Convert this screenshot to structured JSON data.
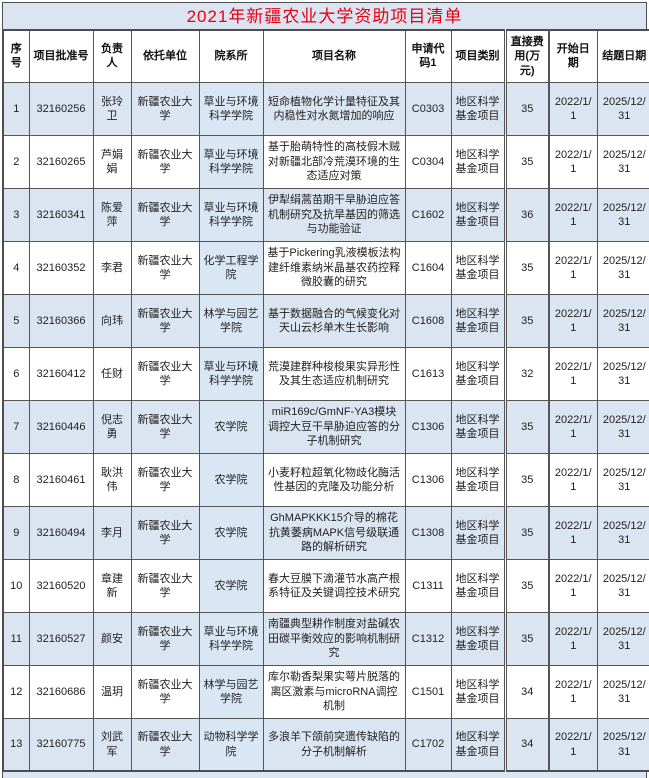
{
  "title": "2021年新疆农业大学资助项目清单",
  "colors": {
    "title_text": "#e60012",
    "title_bar_bg": "#dbe5f1",
    "row_alt_blue": "#dbe5f1",
    "department_col_blue": "#d9e7f5",
    "grid_border": "#555555"
  },
  "table": {
    "headers": [
      "序号",
      "项目批准号",
      "负责人",
      "依托单位",
      "院系所",
      "项目名称",
      "申请代码1",
      "项目类别",
      "直接费用(万元)",
      "开始日期",
      "结题日期"
    ],
    "rows": [
      [
        "1",
        "32160256",
        "张玲卫",
        "新疆农业大学",
        "草业与环境科学学院",
        "短命植物化学计量特征及其内稳性对水氮增加的响应",
        "C0303",
        "地区科学基金项目",
        "35",
        "2022/1/1",
        "2025/12/31"
      ],
      [
        "2",
        "32160265",
        "芦娟娟",
        "新疆农业大学",
        "草业与环境科学学院",
        "基于胎萌特性的高枝假木贼对新疆北部冷荒漠环境的生态适应对策",
        "C0304",
        "地区科学基金项目",
        "35",
        "2022/1/1",
        "2025/12/31"
      ],
      [
        "3",
        "32160341",
        "陈爱萍",
        "新疆农业大学",
        "草业与环境科学学院",
        "伊犁绢蒿苗期干旱胁迫应答机制研究及抗旱基因的筛选与功能验证",
        "C1602",
        "地区科学基金项目",
        "36",
        "2022/1/1",
        "2025/12/31"
      ],
      [
        "4",
        "32160352",
        "李君",
        "新疆农业大学",
        "化学工程学院",
        "基于Pickering乳液模板法构建纤维素纳米晶基农药控释微胶囊的研究",
        "C1604",
        "地区科学基金项目",
        "35",
        "2022/1/1",
        "2025/12/31"
      ],
      [
        "5",
        "32160366",
        "向玮",
        "新疆农业大学",
        "林学与园艺学院",
        "基于数据融合的气候变化对天山云杉单木生长影响",
        "C1608",
        "地区科学基金项目",
        "35",
        "2022/1/1",
        "2025/12/31"
      ],
      [
        "6",
        "32160412",
        "任财",
        "新疆农业大学",
        "草业与环境科学学院",
        "荒漠建群种梭梭果实异形性及其生态适应机制研究",
        "C1613",
        "地区科学基金项目",
        "32",
        "2022/1/1",
        "2025/12/31"
      ],
      [
        "7",
        "32160446",
        "倪志勇",
        "新疆农业大学",
        "农学院",
        "miR169c/GmNF-YA3模块调控大豆干旱胁迫应答的分子机制研究",
        "C1306",
        "地区科学基金项目",
        "35",
        "2022/1/1",
        "2025/12/31"
      ],
      [
        "8",
        "32160461",
        "耿洪伟",
        "新疆农业大学",
        "农学院",
        "小麦籽粒超氧化物歧化酶活性基因的克隆及功能分析",
        "C1306",
        "地区科学基金项目",
        "35",
        "2022/1/1",
        "2025/12/31"
      ],
      [
        "9",
        "32160494",
        "李月",
        "新疆农业大学",
        "农学院",
        "GhMAPKKK15介导的棉花抗黄萎病MAPK信号级联通路的解析研究",
        "C1308",
        "地区科学基金项目",
        "35",
        "2022/1/1",
        "2025/12/31"
      ],
      [
        "10",
        "32160520",
        "章建新",
        "新疆农业大学",
        "农学院",
        "春大豆膜下滴灌节水高产根系特征及关键调控技术研究",
        "C1311",
        "地区科学基金项目",
        "35",
        "2022/1/1",
        "2025/12/31"
      ],
      [
        "11",
        "32160527",
        "颜安",
        "新疆农业大学",
        "草业与环境科学学院",
        "南疆典型耕作制度对盐碱农田碳平衡效应的影响机制研究",
        "C1312",
        "地区科学基金项目",
        "35",
        "2022/1/1",
        "2025/12/31"
      ],
      [
        "12",
        "32160686",
        "温玥",
        "新疆农业大学",
        "林学与园艺学院",
        "库尔勒香梨果实萼片脱落的离区激素与microRNA调控机制",
        "C1501",
        "地区科学基金项目",
        "34",
        "2022/1/1",
        "2025/12/31"
      ],
      [
        "13",
        "32160775",
        "刘武军",
        "新疆农业大学",
        "动物科学学院",
        "多浪羊下颌前突遗传缺陷的分子机制解析",
        "C1702",
        "地区科学基金项目",
        "34",
        "2022/1/1",
        "2025/12/31"
      ]
    ]
  }
}
